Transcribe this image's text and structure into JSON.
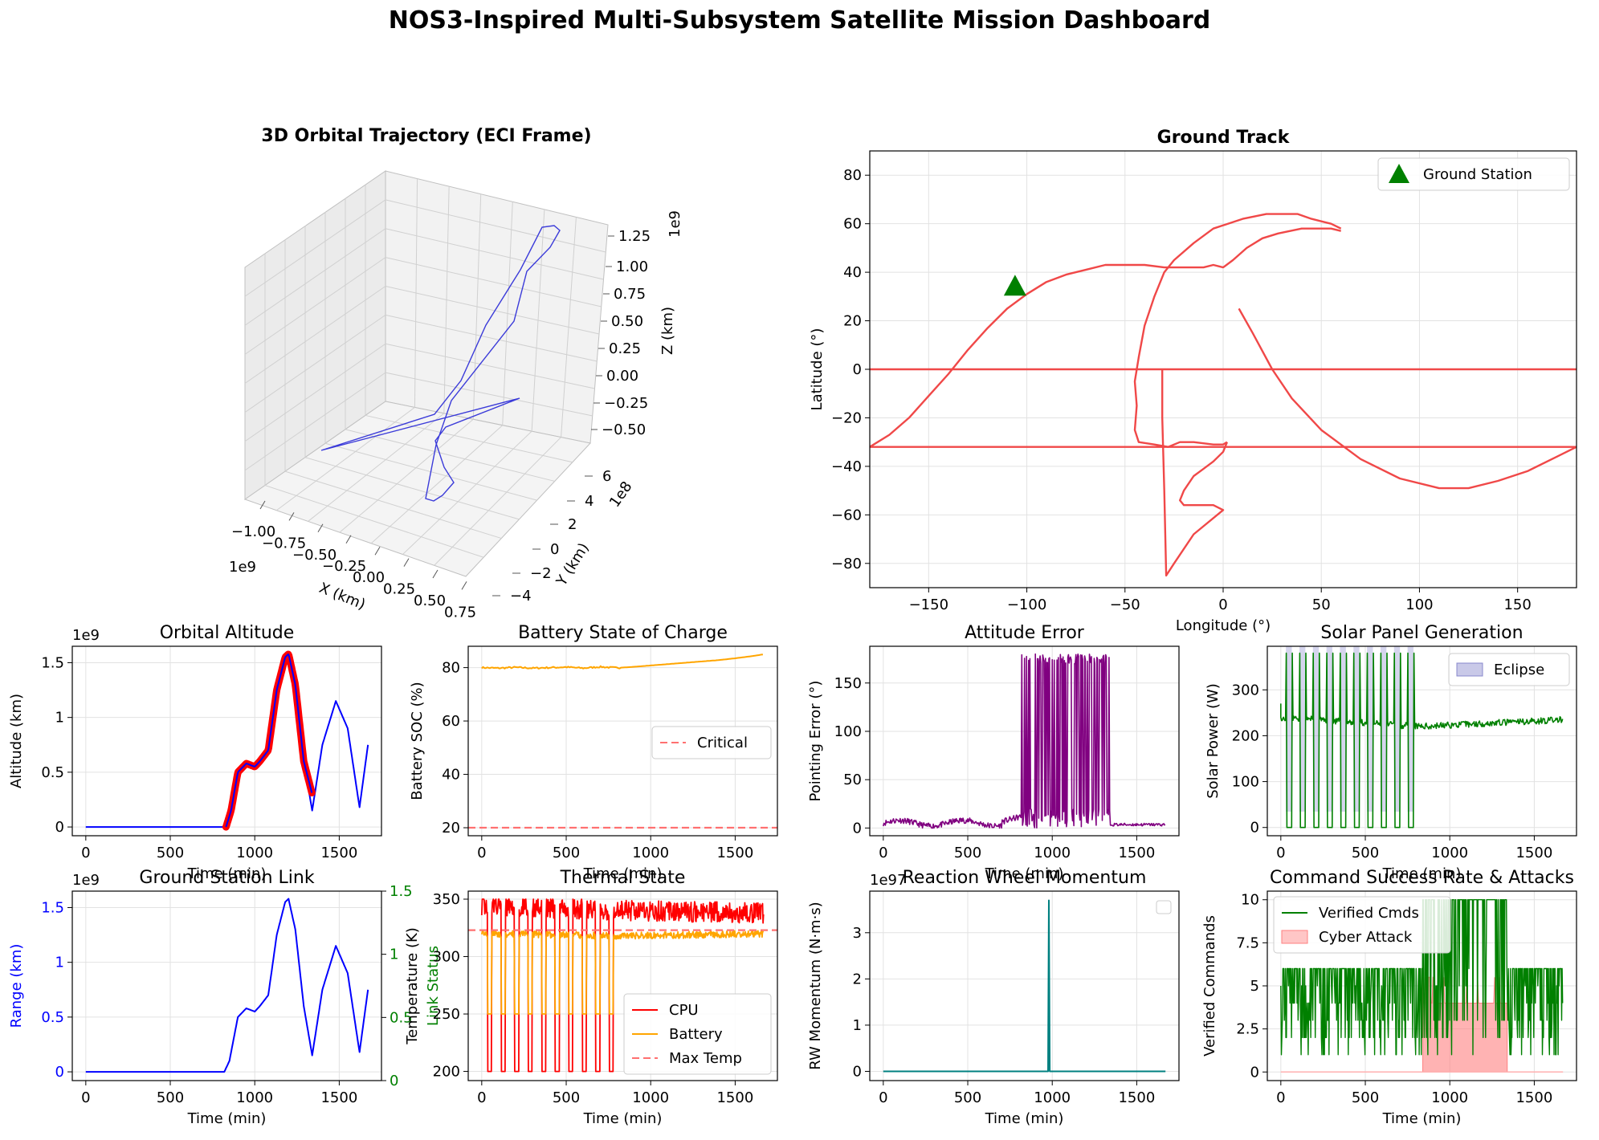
{
  "suptitle": "NOS3-Inspired Multi-Subsystem Satellite Mission Dashboard",
  "chart_data": [
    {
      "id": "orbit3d",
      "type": "line",
      "title": "3D Orbital Trajectory (ECI Frame)",
      "xlabel": "X (km)",
      "ylabel": "Y (km)",
      "zlabel": "Z (km)",
      "x_offset_label": "1e9",
      "y_offset_label": "1e8",
      "z_offset_label": "1e9",
      "x_ticks": [
        "−1.00",
        "−0.75",
        "−0.50",
        "−0.25",
        "0.00",
        "0.25",
        "0.50",
        "0.75"
      ],
      "y_ticks": [
        "−4",
        "−2",
        "0",
        "2",
        "4",
        "6"
      ],
      "z_ticks": [
        "1.25",
        "1.00",
        "0.75",
        "0.50",
        "0.25",
        "0.00",
        "−0.25",
        "−0.50"
      ],
      "color": "#3b3bd9",
      "series": [
        {
          "values": []
        }
      ]
    },
    {
      "id": "ground",
      "type": "line",
      "title": "Ground Track",
      "xlabel": "Longitude (°)",
      "ylabel": "Latitude (°)",
      "xlim": [
        -180,
        180
      ],
      "ylim": [
        -90,
        90
      ],
      "x_ticks": [
        -150,
        -100,
        -50,
        0,
        50,
        100,
        150
      ],
      "y_ticks": [
        -80,
        -60,
        -40,
        -20,
        0,
        20,
        40,
        60,
        80
      ],
      "grid": true,
      "legend": "top-right",
      "colors": {
        "track": "#f04848",
        "station": "#008000"
      },
      "series": [
        {
          "x": [
            -180,
            -160,
            -140,
            -120,
            -100,
            -80,
            -60,
            -45,
            -30,
            -20,
            -10,
            0,
            10,
            20,
            30,
            45,
            55,
            60
          ],
          "y": [
            -32,
            -22,
            -4,
            15,
            30,
            38,
            42,
            43,
            42,
            42,
            42,
            42,
            58,
            63,
            64,
            62,
            57,
            58
          ]
        }
      ],
      "ground_station": {
        "name": "Ground Station",
        "lon": -106,
        "lat": 34
      }
    },
    {
      "id": "altitude",
      "type": "line",
      "title": "Orbital Altitude",
      "xlabel": "Time (min)",
      "ylabel": "Altitude (km)",
      "offset_label": "1e9",
      "xlim": [
        -80,
        1750
      ],
      "ylim": [
        -0.08,
        1.65
      ],
      "x_ticks": [
        0,
        500,
        1000,
        1500
      ],
      "y_ticks": [
        0.0,
        0.5,
        1.0,
        1.5
      ],
      "grid": true,
      "series": [
        {
          "x": [
            0,
            820,
            850,
            900,
            950,
            1000,
            1030,
            1080,
            1130,
            1180,
            1200,
            1240,
            1290,
            1340,
            1400,
            1480,
            1550,
            1620,
            1670
          ],
          "y": [
            0,
            0,
            0.1,
            0.5,
            0.58,
            0.55,
            0.6,
            0.7,
            1.25,
            1.55,
            1.58,
            1.3,
            0.6,
            0.15,
            0.75,
            1.15,
            0.9,
            0.18,
            0.75
          ],
          "color": "#0000ff"
        },
        {
          "x": [
            830,
            860,
            900,
            950,
            1000,
            1030,
            1080,
            1130,
            1180,
            1200,
            1240,
            1290,
            1340
          ],
          "y": [
            0,
            0.15,
            0.5,
            0.58,
            0.55,
            0.6,
            0.7,
            1.25,
            1.55,
            1.58,
            1.3,
            0.6,
            0.3
          ],
          "color": "#ff0000"
        }
      ]
    },
    {
      "id": "battery",
      "type": "line",
      "title": "Battery State of Charge",
      "xlabel": "Time (min)",
      "ylabel": "Battery SOC (%)",
      "xlim": [
        -80,
        1750
      ],
      "ylim": [
        17,
        88
      ],
      "x_ticks": [
        0,
        500,
        1000,
        1500
      ],
      "y_ticks": [
        20,
        40,
        60,
        80
      ],
      "grid": true,
      "legend": "center-right",
      "series": [
        {
          "x": [
            0,
            100,
            200,
            300,
            400,
            500,
            600,
            700,
            800,
            900,
            1000,
            1100,
            1200,
            1300,
            1400,
            1500,
            1600,
            1670
          ],
          "y": [
            80,
            79.8,
            80.1,
            79.8,
            80.0,
            80.2,
            79.8,
            80.3,
            79.9,
            80.3,
            80.8,
            81.3,
            81.8,
            82.3,
            82.8,
            83.5,
            84.3,
            85
          ],
          "color": "#ffa500"
        }
      ],
      "threshold": {
        "name": "Critical",
        "value": 20,
        "color": "#ff7070"
      }
    },
    {
      "id": "attitude",
      "type": "line",
      "title": "Attitude Error",
      "xlabel": "Time (min)",
      "ylabel": "Pointing Error (°)",
      "xlim": [
        -80,
        1750
      ],
      "ylim": [
        -8,
        188
      ],
      "x_ticks": [
        0,
        500,
        1000,
        1500
      ],
      "y_ticks": [
        0,
        50,
        100,
        150
      ],
      "grid": true,
      "series": [
        {
          "x": [
            0,
            820,
            1340,
            1670
          ],
          "y": [
            5,
            8,
            180,
            3
          ],
          "color": "#800080"
        }
      ]
    },
    {
      "id": "solar",
      "type": "line",
      "title": "Solar Panel Generation",
      "xlabel": "Time (min)",
      "ylabel": "Solar Power (W)",
      "xlim": [
        -80,
        1750
      ],
      "ylim": [
        -18,
        395
      ],
      "x_ticks": [
        0,
        500,
        1000,
        1500
      ],
      "y_ticks": [
        0,
        100,
        200,
        300
      ],
      "grid": true,
      "legend": "top-right",
      "series": [
        {
          "x": [
            0,
            820,
            1670
          ],
          "y": [
            240,
            220,
            235
          ],
          "color": "#008000"
        }
      ],
      "eclipse": {
        "name": "Eclipse",
        "color": "#8888cc",
        "intervals": [
          [
            30,
            65
          ],
          [
            110,
            145
          ],
          [
            190,
            225
          ],
          [
            270,
            305
          ],
          [
            350,
            385
          ],
          [
            430,
            465
          ],
          [
            510,
            545
          ],
          [
            590,
            625
          ],
          [
            670,
            705
          ],
          [
            750,
            785
          ]
        ]
      }
    },
    {
      "id": "link",
      "type": "line",
      "title": "Ground Station Link",
      "xlabel": "Time (min)",
      "ylabel": "Range (km)",
      "y2label": "Link Status",
      "offset_label": "1e9",
      "xlim": [
        -80,
        1750
      ],
      "ylim": [
        -0.08,
        1.65
      ],
      "y2lim": [
        0,
        1.5
      ],
      "x_ticks": [
        0,
        500,
        1000,
        1500
      ],
      "y_ticks": [
        0.0,
        0.5,
        1.0,
        1.5
      ],
      "y2_ticks": [
        0.0,
        0.5,
        1.0,
        1.5
      ],
      "grid": true,
      "colors": {
        "range": "#0000ff",
        "status": "#008000"
      },
      "series": [
        {
          "x": [
            0,
            820,
            850,
            900,
            950,
            1000,
            1030,
            1080,
            1130,
            1180,
            1200,
            1240,
            1290,
            1340,
            1400,
            1480,
            1550,
            1620,
            1670
          ],
          "y": [
            0,
            0,
            0.1,
            0.5,
            0.58,
            0.55,
            0.6,
            0.7,
            1.25,
            1.55,
            1.58,
            1.3,
            0.6,
            0.15,
            0.75,
            1.15,
            0.9,
            0.18,
            0.75
          ],
          "color": "#0000ff"
        }
      ]
    },
    {
      "id": "thermal",
      "type": "line",
      "title": "Thermal State",
      "xlabel": "Time (min)",
      "ylabel": "Temperature (K)",
      "xlim": [
        -80,
        1750
      ],
      "ylim": [
        192,
        357
      ],
      "x_ticks": [
        0,
        500,
        1000,
        1500
      ],
      "y_ticks": [
        200,
        250,
        300,
        350
      ],
      "grid": true,
      "legend": "bottom-right",
      "series": [
        {
          "name": "CPU",
          "x": [
            0,
            820,
            1670
          ],
          "y": [
            345,
            340,
            338
          ],
          "color": "#ff0000"
        },
        {
          "name": "Battery",
          "x": [
            0,
            820,
            1670
          ],
          "y": [
            320,
            318,
            320
          ],
          "color": "#ffa500"
        }
      ],
      "threshold": {
        "name": "Max Temp",
        "value": 323,
        "color": "#ff7070"
      }
    },
    {
      "id": "rw",
      "type": "line",
      "title": "Reaction Wheel Momentum",
      "xlabel": "Time (min)",
      "ylabel": "RW Momentum (N·m·s)",
      "offset_label": "1e97",
      "xlim": [
        -80,
        1750
      ],
      "ylim": [
        -0.2,
        3.9
      ],
      "x_ticks": [
        0,
        500,
        1000,
        1500
      ],
      "y_ticks": [
        0,
        1,
        2,
        3
      ],
      "grid": true,
      "legend": "top-right",
      "series": [
        {
          "x": [
            0,
            975,
            980,
            985,
            1670
          ],
          "y": [
            0,
            0,
            3.7,
            0,
            0
          ],
          "color": "#008080"
        }
      ]
    },
    {
      "id": "commands",
      "type": "line",
      "title": "Command Success Rate & Attacks",
      "xlabel": "Time (min)",
      "ylabel": "Verified Commands",
      "xlim": [
        -80,
        1750
      ],
      "ylim": [
        -0.5,
        10.5
      ],
      "x_ticks": [
        0,
        500,
        1000,
        1500
      ],
      "y_ticks": [
        0.0,
        2.5,
        5.0,
        7.5,
        10.0
      ],
      "grid": true,
      "legend": "top-left",
      "series": [
        {
          "name": "Verified Cmds",
          "x": [
            0,
            840,
            1340,
            1670
          ],
          "y": [
            6,
            10,
            6,
            6
          ],
          "color": "#008000"
        }
      ],
      "attack": {
        "name": "Cyber Attack",
        "color": "#ff8080",
        "x": [
          840,
          1340
        ],
        "y": [
          4,
          4
        ]
      }
    }
  ]
}
